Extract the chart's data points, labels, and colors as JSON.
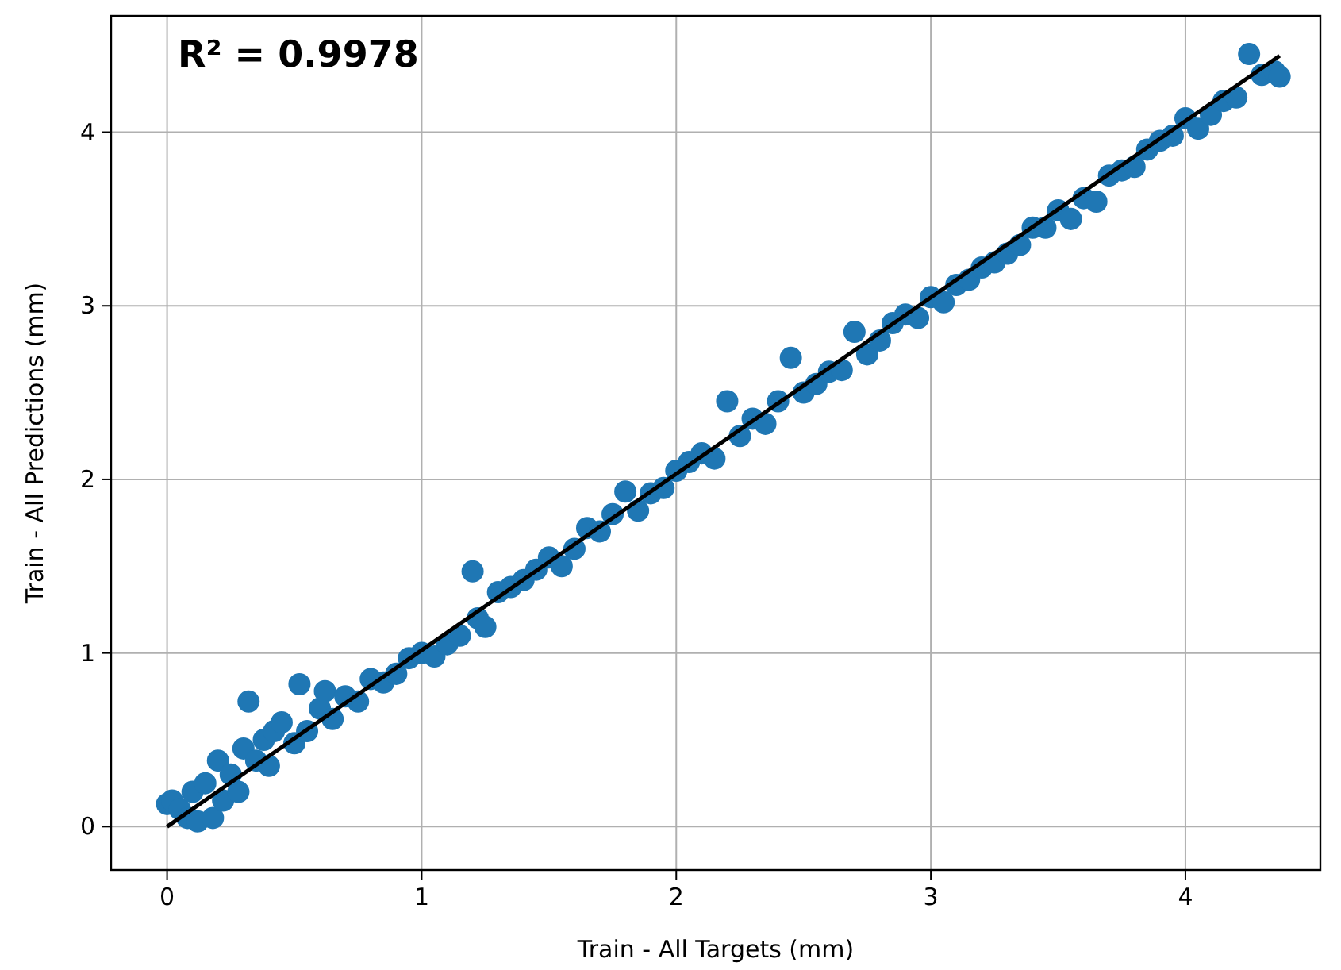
{
  "chart_data": {
    "type": "scatter",
    "xlabel": "Train - All Targets (mm)",
    "ylabel": "Train - All Predictions (mm)",
    "annotations": [
      "R² = 0.9978"
    ],
    "xlim": [
      -0.22,
      4.53
    ],
    "ylim": [
      -0.25,
      4.67
    ],
    "xticks": [
      0,
      1,
      2,
      3,
      4
    ],
    "yticks": [
      0,
      1,
      2,
      3,
      4
    ],
    "grid": true,
    "series": [
      {
        "color": "#1f77b4",
        "marker": "circle",
        "x": [
          0.0,
          0.02,
          0.05,
          0.08,
          0.1,
          0.12,
          0.15,
          0.18,
          0.2,
          0.22,
          0.25,
          0.28,
          0.3,
          0.32,
          0.35,
          0.38,
          0.4,
          0.42,
          0.45,
          0.5,
          0.52,
          0.55,
          0.6,
          0.62,
          0.65,
          0.7,
          0.75,
          0.8,
          0.85,
          0.9,
          0.95,
          1.0,
          1.05,
          1.1,
          1.15,
          1.2,
          1.22,
          1.25,
          1.3,
          1.35,
          1.4,
          1.45,
          1.5,
          1.55,
          1.6,
          1.65,
          1.7,
          1.75,
          1.8,
          1.85,
          1.9,
          1.95,
          2.0,
          2.05,
          2.1,
          2.15,
          2.2,
          2.25,
          2.3,
          2.35,
          2.4,
          2.45,
          2.5,
          2.55,
          2.6,
          2.65,
          2.7,
          2.75,
          2.8,
          2.85,
          2.9,
          2.95,
          3.0,
          3.05,
          3.1,
          3.15,
          3.2,
          3.25,
          3.3,
          3.35,
          3.4,
          3.45,
          3.5,
          3.55,
          3.6,
          3.65,
          3.7,
          3.75,
          3.8,
          3.85,
          3.9,
          3.95,
          4.0,
          4.05,
          4.1,
          4.15,
          4.2,
          4.25,
          4.3,
          4.35,
          4.37
        ],
        "values": [
          0.13,
          0.15,
          0.1,
          0.05,
          0.2,
          0.03,
          0.25,
          0.05,
          0.38,
          0.15,
          0.3,
          0.2,
          0.45,
          0.72,
          0.38,
          0.5,
          0.35,
          0.55,
          0.6,
          0.48,
          0.82,
          0.55,
          0.68,
          0.78,
          0.62,
          0.75,
          0.72,
          0.85,
          0.83,
          0.88,
          0.97,
          1.0,
          0.98,
          1.05,
          1.1,
          1.47,
          1.2,
          1.15,
          1.35,
          1.38,
          1.42,
          1.48,
          1.55,
          1.5,
          1.6,
          1.72,
          1.7,
          1.8,
          1.93,
          1.82,
          1.92,
          1.95,
          2.05,
          2.1,
          2.15,
          2.12,
          2.45,
          2.25,
          2.35,
          2.32,
          2.45,
          2.7,
          2.5,
          2.55,
          2.62,
          2.63,
          2.85,
          2.72,
          2.8,
          2.9,
          2.95,
          2.93,
          3.05,
          3.02,
          3.12,
          3.15,
          3.22,
          3.25,
          3.3,
          3.35,
          3.45,
          3.45,
          3.55,
          3.5,
          3.62,
          3.6,
          3.75,
          3.78,
          3.8,
          3.9,
          3.95,
          3.98,
          4.08,
          4.02,
          4.1,
          4.18,
          4.2,
          4.45,
          4.33,
          4.35,
          4.32
        ]
      },
      {
        "type": "line",
        "color": "#000000",
        "line_style": "solid",
        "x": [
          0,
          4.37
        ],
        "values": [
          0,
          4.44
        ]
      }
    ]
  }
}
